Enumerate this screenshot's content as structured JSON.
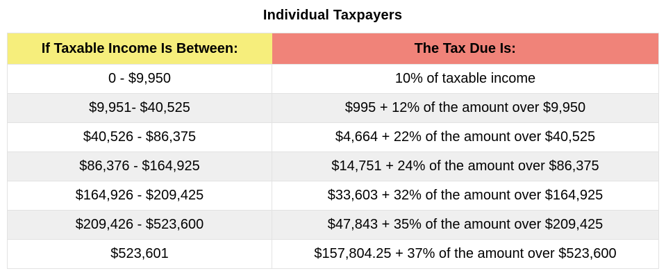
{
  "title": "Individual Taxpayers",
  "chart_data": {
    "type": "table",
    "title": "Individual Taxpayers",
    "columns": [
      "If Taxable Income Is Between:",
      "The Tax Due Is:"
    ],
    "rows": [
      [
        "0 - $9,950",
        "10% of taxable income"
      ],
      [
        "$9,951- $40,525",
        "$995 + 12% of the amount over $9,950"
      ],
      [
        "$40,526 - $86,375",
        "$4,664 + 22% of the amount over $40,525"
      ],
      [
        "$86,376 - $164,925",
        "$14,751 + 24% of the amount over $86,375"
      ],
      [
        "$164,926 - $209,425",
        "$33,603 + 32% of the amount over $164,925"
      ],
      [
        "$209,426 - $523,600",
        "$47,843 + 35% of the amount over $209,425"
      ],
      [
        "$523,601",
        "$157,804.25 + 37% of the amount over $523,600"
      ]
    ]
  },
  "colors": {
    "income_header_bg": "#f6ee7c",
    "tax_header_bg": "#f08379",
    "row_alt_bg": "#efefef",
    "border": "#e2e2e2",
    "text": "#000000"
  }
}
